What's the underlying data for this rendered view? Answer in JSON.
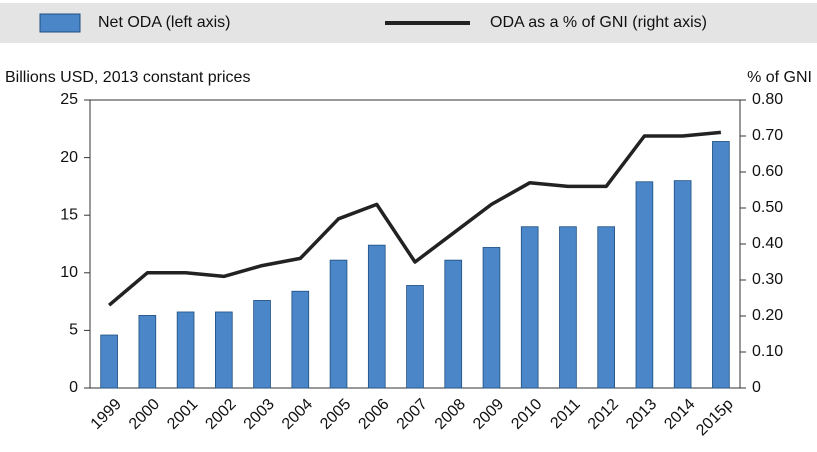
{
  "chart_data": {
    "type": "bar",
    "ylabel": "Billions USD, 2013 constant prices",
    "y2label": "% of GNI",
    "categories": [
      "1999",
      "2000",
      "2001",
      "2002",
      "2003",
      "2004",
      "2005",
      "2006",
      "2007",
      "2008",
      "2009",
      "2010",
      "2011",
      "2012",
      "2013",
      "2014",
      "2015p"
    ],
    "series": [
      {
        "name": "Net ODA (left axis)",
        "type": "bar",
        "color": "#4a86c8",
        "axis": "y",
        "values": [
          4.6,
          6.3,
          6.6,
          6.6,
          7.6,
          8.4,
          11.1,
          12.4,
          8.9,
          11.1,
          12.2,
          14.0,
          14.0,
          14.0,
          17.9,
          18.0,
          21.4
        ]
      },
      {
        "name": "ODA as a % of GNI (right axis)",
        "type": "line",
        "color": "#222222",
        "axis": "y2",
        "values": [
          0.23,
          0.32,
          0.32,
          0.31,
          0.34,
          0.36,
          0.47,
          0.51,
          0.35,
          0.43,
          0.51,
          0.57,
          0.56,
          0.56,
          0.7,
          0.7,
          0.71
        ]
      }
    ],
    "ylim": [
      0,
      25
    ],
    "yticks": [
      0,
      5,
      10,
      15,
      20,
      25
    ],
    "y2lim": [
      0,
      0.8
    ],
    "y2ticks": [
      0,
      {
        "value": 0.1,
        "label": "0.10"
      },
      {
        "value": 0.2,
        "label": "0.20"
      },
      {
        "value": 0.3,
        "label": "0.30"
      },
      {
        "value": 0.4,
        "label": "0.40"
      },
      {
        "value": 0.5,
        "label": "0.50"
      },
      {
        "value": 0.6,
        "label": "0.60"
      },
      {
        "value": 0.7,
        "label": "0.70"
      },
      {
        "value": 0.8,
        "label": "0.80"
      }
    ],
    "grid": false,
    "legend": "top"
  }
}
